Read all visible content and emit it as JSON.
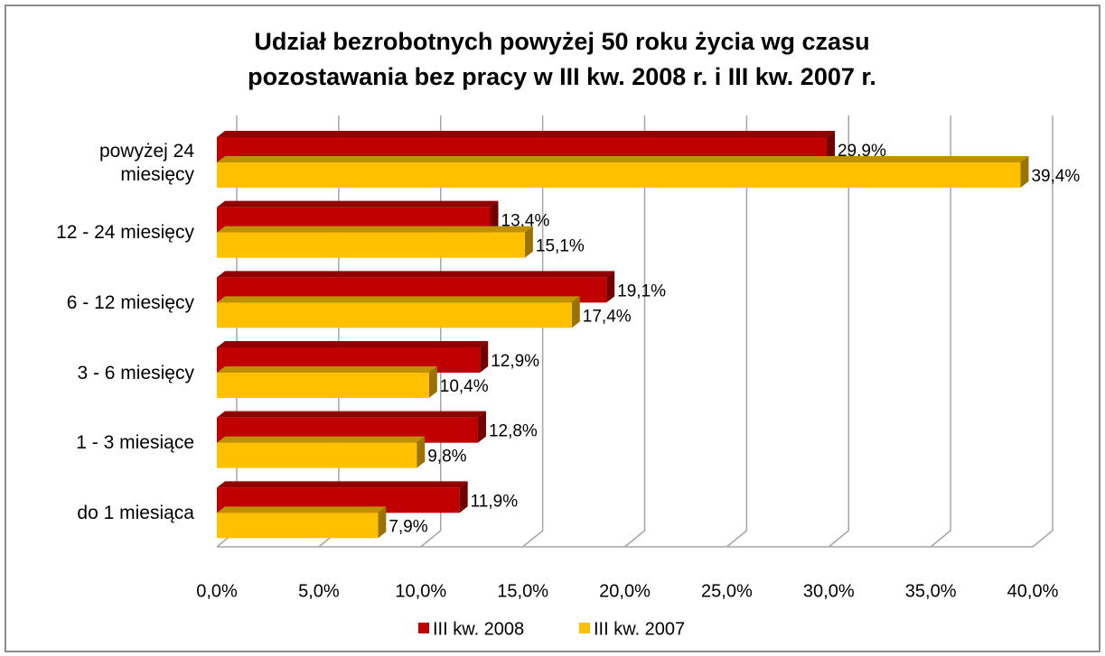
{
  "chart_data": {
    "type": "bar",
    "orientation": "horizontal",
    "title": [
      "Udział bezrobotnych powyżej 50 roku życia wg czasu",
      "pozostawania bez pracy w III kw. 2008 r. i III kw. 2007 r."
    ],
    "categories": [
      "powyżej 24 miesięcy",
      "12 - 24 miesięcy",
      "6 - 12 miesięcy",
      "3 - 6 miesięcy",
      "1 - 3 miesiące",
      "do 1 miesiąca"
    ],
    "series": [
      {
        "name": "III kw. 2008",
        "color": "#c00000",
        "values": [
          29.9,
          13.4,
          19.1,
          12.9,
          12.8,
          11.9
        ],
        "value_labels": [
          "29,9%",
          "13,4%",
          "19,1%",
          "12,9%",
          "12,8%",
          "11,9%"
        ]
      },
      {
        "name": "III kw. 2007",
        "color": "#ffc000",
        "values": [
          39.4,
          15.1,
          17.4,
          10.4,
          9.8,
          7.9
        ],
        "value_labels": [
          "39,4%",
          "15,1%",
          "17,4%",
          "10,4%",
          "9,8%",
          "7,9%"
        ]
      }
    ],
    "xlim": [
      0,
      40
    ],
    "xticks": [
      {
        "value": 0,
        "label": "0,0%"
      },
      {
        "value": 5,
        "label": "5,0%"
      },
      {
        "value": 10,
        "label": "10,0%"
      },
      {
        "value": 15,
        "label": "15,0%"
      },
      {
        "value": 20,
        "label": "20,0%"
      },
      {
        "value": 25,
        "label": "25,0%"
      },
      {
        "value": 30,
        "label": "30,0%"
      },
      {
        "value": 35,
        "label": "35,0%"
      },
      {
        "value": 40,
        "label": "40,0%"
      }
    ],
    "grid": true,
    "legend": "bottom"
  }
}
